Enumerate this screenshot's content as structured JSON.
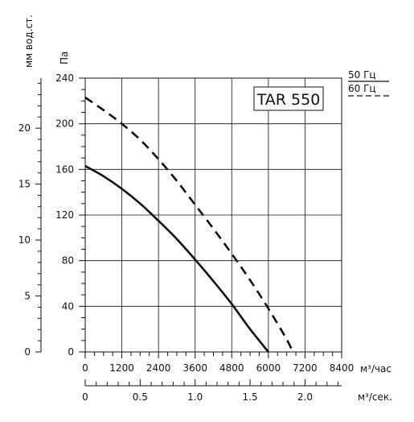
{
  "chart_data": {
    "type": "line",
    "title": "TAR 550",
    "xlabel": "м³/час",
    "ylabel": "Па",
    "ylabel_secondary": "мм вод.ст.",
    "xlabel_secondary": "м³/сек.",
    "xlim": [
      0,
      8400
    ],
    "ylim": [
      0,
      240
    ],
    "x_ticks": [
      0,
      1200,
      2400,
      3600,
      4800,
      6000,
      7200,
      8400
    ],
    "x_ticks_labels": [
      "0",
      "1200",
      "2400",
      "3600",
      "4800",
      "6000",
      "7200",
      "8400"
    ],
    "y_ticks": [
      0,
      40,
      80,
      120,
      160,
      200,
      240
    ],
    "y_ticks_labels": [
      "0",
      "40",
      "80",
      "120",
      "160",
      "200",
      "240"
    ],
    "y2_ticks": [
      0,
      5,
      10,
      15,
      20
    ],
    "y2_ticks_labels": [
      "0",
      "5",
      "10",
      "15",
      "20"
    ],
    "x2_ticks": [
      0,
      0.5,
      1.0,
      1.5,
      2.0
    ],
    "x2_ticks_labels": [
      "0",
      "0.5",
      "1.0",
      "1.5",
      "2.0"
    ],
    "grid": true,
    "legend": [
      {
        "label": "50 Гц",
        "style": "solid"
      },
      {
        "label": "60 Гц",
        "style": "dashed"
      }
    ],
    "series": [
      {
        "name": "50 Гц",
        "style": "solid",
        "x": [
          0,
          600,
          1200,
          1800,
          2400,
          3000,
          3600,
          4200,
          4800,
          5400,
          6000
        ],
        "y": [
          163,
          154,
          143,
          130,
          115,
          99,
          81,
          62,
          42,
          20,
          0
        ]
      },
      {
        "name": "60 Гц",
        "style": "dashed",
        "x": [
          0,
          600,
          1200,
          1800,
          2400,
          3000,
          3600,
          4200,
          4800,
          5400,
          6000,
          6600,
          6800
        ],
        "y": [
          223,
          212,
          200,
          186,
          169,
          150,
          129,
          108,
          86,
          63,
          38,
          11,
          0
        ]
      }
    ]
  }
}
